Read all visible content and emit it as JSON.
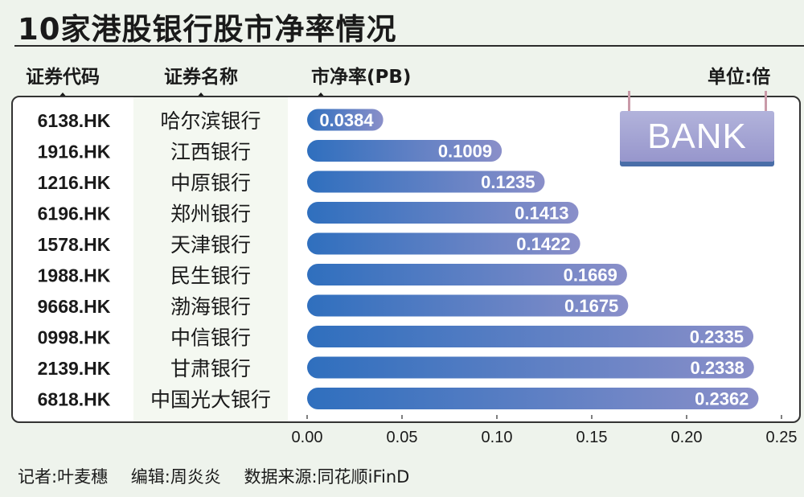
{
  "title": "10家港股银行股市净率情况",
  "headers": {
    "code": "证券代码",
    "name": "证券名称",
    "pb": "市净率(PB)",
    "unit": "单位:倍"
  },
  "badge": "BANK",
  "footer": {
    "reporter": "记者:叶麦穗",
    "editor": "编辑:周炎炎",
    "source": "数据来源:同花顺iFinD"
  },
  "colors": {
    "bar_start": "#2f6fbe",
    "bar_end": "#8a8fc9",
    "background": "#eef3ec"
  },
  "chart_data": {
    "type": "bar",
    "orientation": "horizontal",
    "codes": [
      "6138.HK",
      "1916.HK",
      "1216.HK",
      "6196.HK",
      "1578.HK",
      "1988.HK",
      "9668.HK",
      "0998.HK",
      "2139.HK",
      "6818.HK"
    ],
    "categories": [
      "哈尔滨银行",
      "江西银行",
      "中原银行",
      "郑州银行",
      "天津银行",
      "民生银行",
      "渤海银行",
      "中信银行",
      "甘肃银行",
      "中国光大银行"
    ],
    "values": [
      0.0384,
      0.1009,
      0.1235,
      0.1413,
      0.1422,
      0.1669,
      0.1675,
      0.2335,
      0.2338,
      0.2362
    ],
    "value_labels": [
      "0.0384",
      "0.1009",
      "0.1235",
      "0.1413",
      "0.1422",
      "0.1669",
      "0.1675",
      "0.2335",
      "0.2338",
      "0.2362"
    ],
    "xlim": [
      0,
      0.25
    ],
    "xticks": [
      "0.00",
      "0.05",
      "0.10",
      "0.15",
      "0.20",
      "0.25"
    ],
    "grid": false
  }
}
